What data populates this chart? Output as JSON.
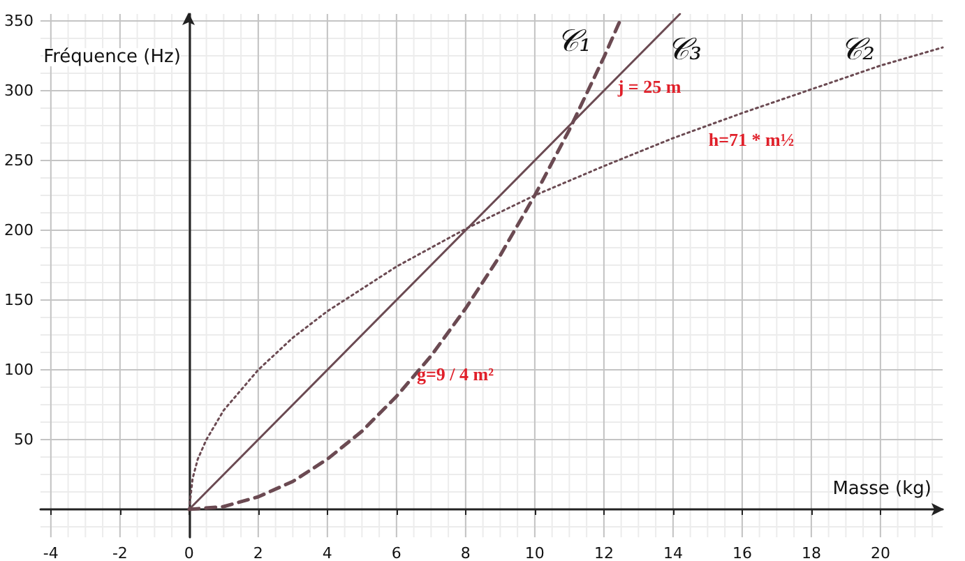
{
  "chart_data": {
    "type": "line",
    "xlabel": "Masse (kg)",
    "ylabel": "Fréquence (Hz)",
    "xlim": [
      -4.3,
      21.8
    ],
    "ylim": [
      -20,
      355
    ],
    "xticks": [
      -4,
      -2,
      0,
      2,
      4,
      6,
      8,
      10,
      12,
      14,
      16,
      18,
      20
    ],
    "yticks": [
      50,
      100,
      150,
      200,
      250,
      300,
      350
    ],
    "grid": true,
    "marker": "none",
    "series": [
      {
        "color": "#6b4a52",
        "line_style": "dashed",
        "x": [
          0,
          1,
          2,
          3,
          4,
          5,
          6,
          7,
          8,
          9,
          10,
          11,
          12,
          12.5
        ],
        "values": [
          0,
          2,
          9,
          20,
          36,
          56,
          81,
          110,
          144,
          182,
          225,
          272,
          324,
          352
        ]
      },
      {
        "color": "#6b4a52",
        "line_style": "solid",
        "x": [
          0,
          14.2
        ],
        "values": [
          0,
          355
        ]
      },
      {
        "color": "#6b4a52",
        "line_style": "dotted",
        "x": [
          0,
          0.1,
          0.25,
          0.5,
          1,
          2,
          3,
          4,
          6,
          8,
          10,
          12,
          14,
          16,
          18,
          20,
          21.8
        ],
        "values": [
          0,
          22,
          36,
          50,
          71,
          100,
          123,
          142,
          174,
          201,
          225,
          246,
          266,
          284,
          301,
          318,
          331
        ]
      }
    ],
    "annotations": [
      "𝒞₁",
      "𝒞₃",
      "𝒞₂",
      "j = 25 m",
      "h=71 * m½",
      "g=9 / 4 m²"
    ]
  }
}
